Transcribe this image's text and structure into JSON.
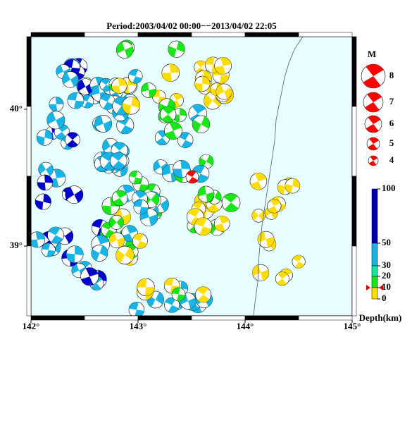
{
  "header": {
    "title": "Period:2003/04/02 00:00−−2013/04/02 22:05"
  },
  "map": {
    "x_ticks": [
      {
        "value": 142,
        "label": "142°"
      },
      {
        "value": 143,
        "label": "143°"
      },
      {
        "value": 144,
        "label": "144°"
      },
      {
        "value": 145,
        "label": "145°"
      }
    ],
    "y_ticks": [
      {
        "value": 40,
        "label": "40°"
      },
      {
        "value": 39,
        "label": "39°"
      }
    ]
  },
  "magnitude_legend": {
    "title": "M",
    "labels": [
      "8",
      "7",
      "6",
      "5",
      "4"
    ]
  },
  "depth_legend": {
    "labels": [
      "100",
      "50",
      "30",
      "20",
      "10",
      "0"
    ],
    "title": "Depth(km)"
  }
}
